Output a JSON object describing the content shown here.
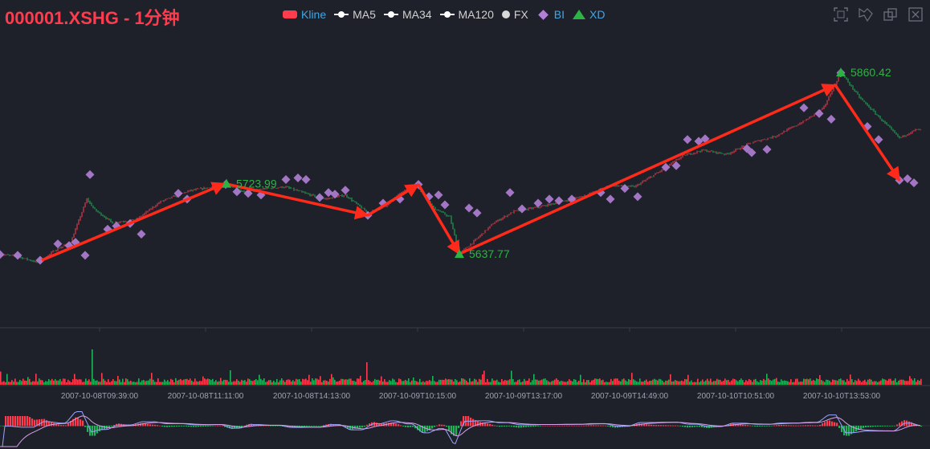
{
  "title": "000001.XSHG - 1分钟",
  "legend": [
    {
      "label": "Kline",
      "swatch": "rect",
      "color": "#ff3b4e",
      "active": true
    },
    {
      "label": "MA5",
      "swatch": "line",
      "color": "#ffffff",
      "active": false
    },
    {
      "label": "MA34",
      "swatch": "line",
      "color": "#ffffff",
      "active": false
    },
    {
      "label": "MA120",
      "swatch": "line",
      "color": "#ffffff",
      "active": false
    },
    {
      "label": "FX",
      "swatch": "dot",
      "color": "#d8d8d8",
      "active": false
    },
    {
      "label": "BI",
      "swatch": "diamond",
      "color": "#b07fd6",
      "active": true
    },
    {
      "label": "XD",
      "swatch": "triangle",
      "color": "#2bb344",
      "active": true
    }
  ],
  "toolbox": [
    "zoom-icon",
    "zoom-reset-icon",
    "restore-icon",
    "save-image-icon"
  ],
  "colors": {
    "up": "#ff3b4e",
    "down": "#21b35a",
    "bi": "#b07fd6",
    "xd_arrow": "#ff2a1a",
    "xd_mark": "#2bb344",
    "macd_dif": "#9aa4ff",
    "macd_dea": "#d6a0e8"
  },
  "chart_data": {
    "type": "candlestick",
    "x_tick_labels": [
      "2007-10-08T09:39:00",
      "2007-10-08T11:11:00",
      "2007-10-08T14:13:00",
      "2007-10-09T10:15:00",
      "2007-10-09T13:17:00",
      "2007-10-09T14:49:00",
      "2007-10-10T10:51:00",
      "2007-10-10T13:53:00"
    ],
    "ylim": [
      5560,
      5900
    ],
    "price_path": [
      [
        0,
        5637
      ],
      [
        20,
        5635
      ],
      [
        48,
        5627
      ],
      [
        68,
        5642
      ],
      [
        88,
        5652
      ],
      [
        108,
        5705
      ],
      [
        118,
        5692
      ],
      [
        140,
        5676
      ],
      [
        170,
        5680
      ],
      [
        200,
        5702
      ],
      [
        235,
        5715
      ],
      [
        265,
        5720
      ],
      [
        282,
        5723.99
      ],
      [
        305,
        5713
      ],
      [
        330,
        5718
      ],
      [
        355,
        5720
      ],
      [
        380,
        5712
      ],
      [
        405,
        5705
      ],
      [
        430,
        5710
      ],
      [
        458,
        5688
      ],
      [
        480,
        5696
      ],
      [
        500,
        5714
      ],
      [
        520,
        5721
      ],
      [
        540,
        5694
      ],
      [
        560,
        5683
      ],
      [
        572,
        5637.77
      ],
      [
        590,
        5653
      ],
      [
        615,
        5676
      ],
      [
        640,
        5690
      ],
      [
        670,
        5695
      ],
      [
        700,
        5702
      ],
      [
        730,
        5710
      ],
      [
        760,
        5722
      ],
      [
        790,
        5720
      ],
      [
        820,
        5738
      ],
      [
        850,
        5758
      ],
      [
        875,
        5765
      ],
      [
        905,
        5760
      ],
      [
        935,
        5774
      ],
      [
        965,
        5782
      ],
      [
        1000,
        5800
      ],
      [
        1025,
        5816
      ],
      [
        1047,
        5860.42
      ],
      [
        1070,
        5830
      ],
      [
        1095,
        5805
      ],
      [
        1120,
        5780
      ],
      [
        1140,
        5790
      ]
    ],
    "bi_points": [
      [
        0,
        5637
      ],
      [
        22,
        5636
      ],
      [
        50,
        5630
      ],
      [
        72,
        5650
      ],
      [
        86,
        5648
      ],
      [
        94,
        5652
      ],
      [
        106,
        5636
      ],
      [
        112,
        5735
      ],
      [
        134,
        5668
      ],
      [
        145,
        5672
      ],
      [
        162,
        5675
      ],
      [
        176,
        5662
      ],
      [
        222,
        5712
      ],
      [
        233,
        5705
      ],
      [
        281,
        5723
      ],
      [
        295,
        5714
      ],
      [
        309,
        5712
      ],
      [
        325,
        5710
      ],
      [
        356,
        5729
      ],
      [
        371,
        5731
      ],
      [
        381,
        5729
      ],
      [
        398,
        5707
      ],
      [
        409,
        5713
      ],
      [
        417,
        5711
      ],
      [
        430,
        5716
      ],
      [
        458,
        5685
      ],
      [
        477,
        5700
      ],
      [
        498,
        5705
      ],
      [
        521,
        5723
      ],
      [
        534,
        5708
      ],
      [
        546,
        5710
      ],
      [
        554,
        5698
      ],
      [
        584,
        5694
      ],
      [
        594,
        5688
      ],
      [
        635,
        5713
      ],
      [
        650,
        5693
      ],
      [
        670,
        5700
      ],
      [
        684,
        5705
      ],
      [
        696,
        5703
      ],
      [
        712,
        5705
      ],
      [
        748,
        5713
      ],
      [
        760,
        5705
      ],
      [
        778,
        5718
      ],
      [
        794,
        5708
      ],
      [
        829,
        5744
      ],
      [
        842,
        5746
      ],
      [
        856,
        5778
      ],
      [
        870,
        5776
      ],
      [
        878,
        5779
      ],
      [
        930,
        5767
      ],
      [
        936,
        5762
      ],
      [
        955,
        5766
      ],
      [
        1001,
        5817
      ],
      [
        1020,
        5810
      ],
      [
        1035,
        5803
      ],
      [
        1047,
        5860
      ],
      [
        1080,
        5794
      ],
      [
        1094,
        5778
      ],
      [
        1120,
        5728
      ],
      [
        1130,
        5730
      ],
      [
        1138,
        5725
      ]
    ],
    "xd_segments": [
      [
        [
          52,
          5630
        ],
        [
          280,
          5723.99
        ]
      ],
      [
        [
          280,
          5723.99
        ],
        [
          458,
          5685
        ]
      ],
      [
        [
          458,
          5685
        ],
        [
          521,
          5723
        ]
      ],
      [
        [
          521,
          5723
        ],
        [
          572,
          5637.77
        ]
      ],
      [
        [
          572,
          5637.77
        ],
        [
          1040,
          5845
        ]
      ],
      [
        [
          1040,
          5845
        ],
        [
          1120,
          5728
        ]
      ]
    ],
    "xd_labels": [
      {
        "text": "5723.99",
        "x": 282,
        "y": 5723.99
      },
      {
        "text": "5637.77",
        "x": 572,
        "y": 5637.77
      },
      {
        "text": "5860.42",
        "x": 1047,
        "y": 5860.42
      }
    ]
  }
}
